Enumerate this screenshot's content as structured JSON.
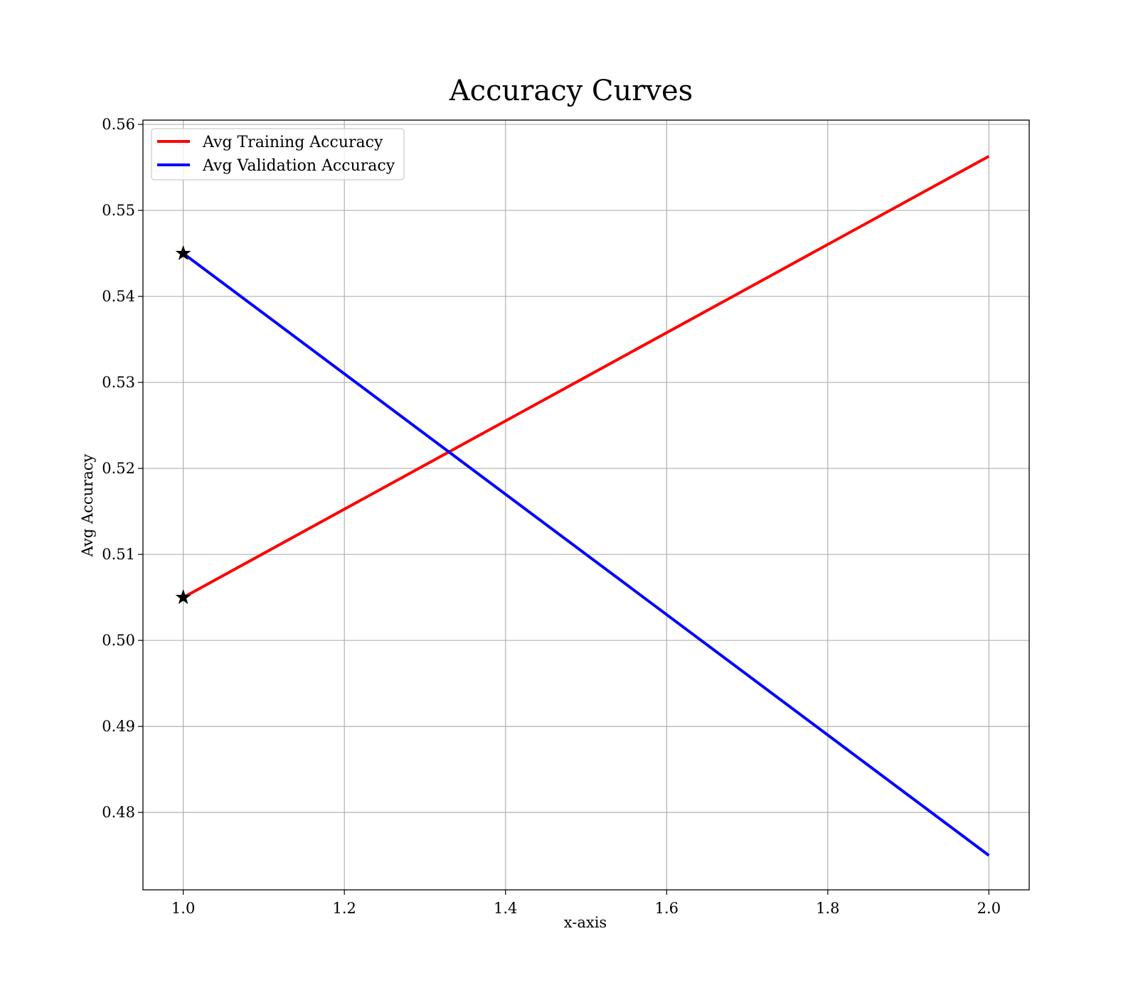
{
  "chart_data": {
    "type": "line",
    "title": "Accuracy Curves",
    "xlabel": "x-axis",
    "ylabel": "Avg Accuracy",
    "xlim": [
      0.95,
      2.05
    ],
    "ylim": [
      0.471,
      0.5605
    ],
    "x_ticks": [
      1.0,
      1.2,
      1.4,
      1.6,
      1.8,
      2.0
    ],
    "x_tick_labels": [
      "1.0",
      "1.2",
      "1.4",
      "1.6",
      "1.8",
      "2.0"
    ],
    "y_ticks": [
      0.48,
      0.49,
      0.5,
      0.51,
      0.52,
      0.53,
      0.54,
      0.55,
      0.56
    ],
    "y_tick_labels": [
      "0.48",
      "0.49",
      "0.50",
      "0.51",
      "0.52",
      "0.53",
      "0.54",
      "0.55",
      "0.56"
    ],
    "grid": true,
    "legend_position": "top-left",
    "series": [
      {
        "name": "Avg Training Accuracy",
        "color": "#ff0000",
        "x": [
          1,
          2
        ],
        "y": [
          0.505,
          0.5563
        ],
        "best_marker": {
          "x": 1,
          "y": 0.505,
          "shape": "star"
        }
      },
      {
        "name": "Avg Validation Accuracy",
        "color": "#0000ff",
        "x": [
          1,
          2
        ],
        "y": [
          0.545,
          0.475
        ],
        "best_marker": {
          "x": 1,
          "y": 0.545,
          "shape": "star"
        }
      }
    ]
  }
}
